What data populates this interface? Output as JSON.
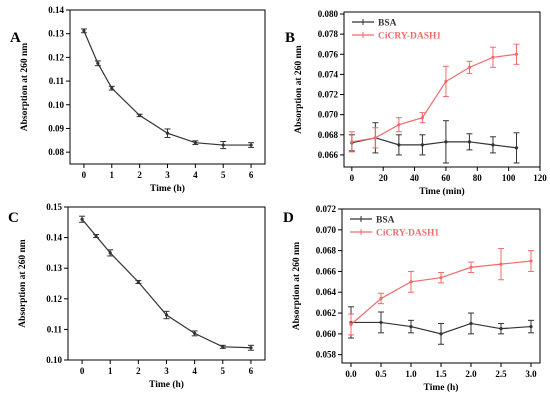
{
  "chart_data": [
    {
      "panel": "A",
      "type": "line",
      "xlabel": "Time (h)",
      "ylabel": "Absorption at 260 nm",
      "xlim": [
        -0.5,
        6.5
      ],
      "ylim": [
        0.075,
        0.14
      ],
      "xticks": [
        0,
        1,
        2,
        3,
        4,
        5,
        6
      ],
      "yticks": [
        0.08,
        0.09,
        0.1,
        0.11,
        0.12,
        0.13,
        0.14
      ],
      "ytick_decimals": 2,
      "legend": false,
      "series": [
        {
          "color": "#333333",
          "x": [
            0,
            0.5,
            1,
            2,
            3,
            4,
            5,
            6
          ],
          "y": [
            0.1312,
            0.1175,
            0.107,
            0.0955,
            0.088,
            0.084,
            0.083,
            0.083
          ],
          "err": [
            0.0008,
            0.001,
            0.0008,
            0.0005,
            0.0018,
            0.0008,
            0.0015,
            0.001
          ]
        }
      ]
    },
    {
      "panel": "B",
      "type": "line",
      "xlabel": "Time (min)",
      "ylabel": "Absorption at 260 nm",
      "xlim": [
        -5,
        120
      ],
      "ylim": [
        0.0648,
        0.0802
      ],
      "xticks": [
        0,
        20,
        40,
        60,
        80,
        100,
        120
      ],
      "yticks": [
        0.066,
        0.068,
        0.07,
        0.072,
        0.074,
        0.076,
        0.078,
        0.08
      ],
      "ytick_decimals": 3,
      "legend": true,
      "series": [
        {
          "name": "BSA",
          "color": "#333333",
          "x": [
            0,
            15,
            30,
            45,
            60,
            75,
            90,
            105
          ],
          "y": [
            0.0672,
            0.0677,
            0.067,
            0.067,
            0.0673,
            0.0673,
            0.067,
            0.0667
          ],
          "err": [
            0.0008,
            0.0015,
            0.001,
            0.001,
            0.0021,
            0.0008,
            0.0008,
            0.0015
          ]
        },
        {
          "name": "CiCRY-DASH1",
          "color": "#f26b6b",
          "x": [
            0,
            15,
            30,
            45,
            60,
            75,
            90,
            105
          ],
          "y": [
            0.0673,
            0.0677,
            0.069,
            0.0697,
            0.0733,
            0.0747,
            0.0757,
            0.076
          ],
          "err": [
            0.001,
            0.001,
            0.0007,
            0.0005,
            0.0015,
            0.0006,
            0.001,
            0.001
          ]
        }
      ]
    },
    {
      "panel": "C",
      "type": "line",
      "xlabel": "Time (h)",
      "ylabel": "Absorption at 260 nm",
      "xlim": [
        -0.5,
        6.5
      ],
      "ylim": [
        0.1,
        0.15
      ],
      "xticks": [
        0,
        1,
        2,
        3,
        4,
        5,
        6
      ],
      "yticks": [
        0.1,
        0.11,
        0.12,
        0.13,
        0.14,
        0.15
      ],
      "ytick_decimals": 2,
      "legend": false,
      "series": [
        {
          "color": "#333333",
          "x": [
            0,
            0.5,
            1,
            2,
            3,
            4,
            5,
            6
          ],
          "y": [
            0.146,
            0.1405,
            0.135,
            0.1255,
            0.1147,
            0.1087,
            0.1043,
            0.104
          ],
          "err": [
            0.001,
            0.0005,
            0.001,
            0.0005,
            0.0012,
            0.0008,
            0.0005,
            0.0008
          ]
        }
      ]
    },
    {
      "panel": "D",
      "type": "line",
      "xlabel": "Time (h)",
      "ylabel": "Absorption at 260 nm",
      "xlim": [
        -0.15,
        3.15
      ],
      "ylim": [
        0.0572,
        0.072
      ],
      "xticks": [
        0.0,
        0.5,
        1.0,
        1.5,
        2.0,
        2.5,
        3.0
      ],
      "xtick_decimals": 1,
      "yticks": [
        0.058,
        0.06,
        0.062,
        0.064,
        0.066,
        0.068,
        0.07,
        0.072
      ],
      "ytick_decimals": 3,
      "legend": true,
      "series": [
        {
          "name": "BSA",
          "color": "#333333",
          "x": [
            0,
            0.5,
            1.0,
            1.5,
            2.0,
            2.5,
            3.0
          ],
          "y": [
            0.0611,
            0.0611,
            0.0607,
            0.06,
            0.061,
            0.0605,
            0.0607
          ],
          "err": [
            0.0015,
            0.001,
            0.0006,
            0.001,
            0.001,
            0.0005,
            0.0006
          ]
        },
        {
          "name": "CiCRY-DASH1",
          "color": "#f26b6b",
          "x": [
            0,
            0.5,
            1.0,
            1.5,
            2.0,
            2.5,
            3.0
          ],
          "y": [
            0.0609,
            0.0634,
            0.065,
            0.0654,
            0.0664,
            0.0667,
            0.067
          ],
          "err": [
            0.001,
            0.0005,
            0.001,
            0.0005,
            0.0005,
            0.0015,
            0.001
          ]
        }
      ]
    }
  ]
}
